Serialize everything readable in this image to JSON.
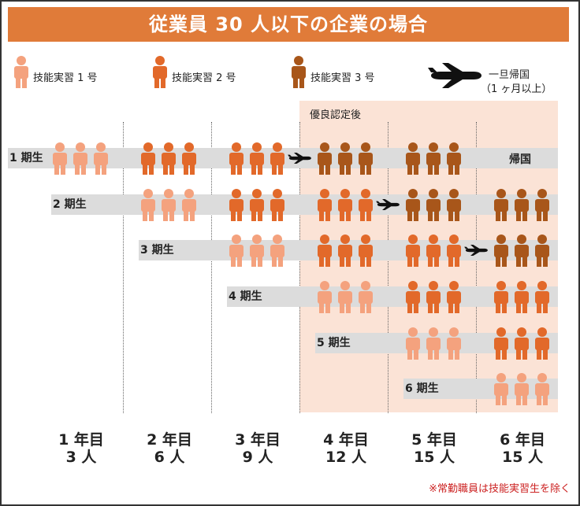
{
  "title": "従業員 30 人以下の企業の場合",
  "legend": {
    "level1": "技能実習 1 号",
    "level2": "技能実習 2 号",
    "level3": "技能実習 3 号",
    "return_line1": "一旦帰国",
    "return_line2": "（1 ヶ月以上）"
  },
  "excellence_label": "優良認定後",
  "return_label": "帰国",
  "cohorts": [
    "1 期生",
    "2 期生",
    "3 期生",
    "4 期生",
    "5 期生",
    "6 期生"
  ],
  "columns": [
    {
      "year": "1 年目",
      "count": "3 人"
    },
    {
      "year": "2 年目",
      "count": "6 人"
    },
    {
      "year": "3 年目",
      "count": "9 人"
    },
    {
      "year": "4 年目",
      "count": "12 人"
    },
    {
      "year": "5 年目",
      "count": "15 人"
    },
    {
      "year": "6 年目",
      "count": "15 人"
    }
  ],
  "grid": [
    [
      1,
      2,
      2,
      3,
      3,
      0
    ],
    [
      0,
      1,
      2,
      2,
      3,
      3
    ],
    [
      0,
      0,
      1,
      2,
      2,
      3
    ],
    [
      0,
      0,
      0,
      1,
      2,
      2
    ],
    [
      0,
      0,
      0,
      0,
      1,
      2
    ],
    [
      0,
      0,
      0,
      0,
      0,
      1
    ]
  ],
  "returns": [
    {
      "cohort": 0,
      "after_year": 2
    },
    {
      "cohort": 1,
      "after_year": 3
    },
    {
      "cohort": 2,
      "after_year": 4
    }
  ],
  "colors": {
    "level1": "#f4a27e",
    "level2": "#e2692a",
    "level3": "#a8561a",
    "title_bg": "#e07b39",
    "band": "#dcdcdc",
    "excellence_bg": "#fbe3d6",
    "footnote": "#cc2222"
  },
  "footnote": "※常勤職員は技能実習生を除く"
}
